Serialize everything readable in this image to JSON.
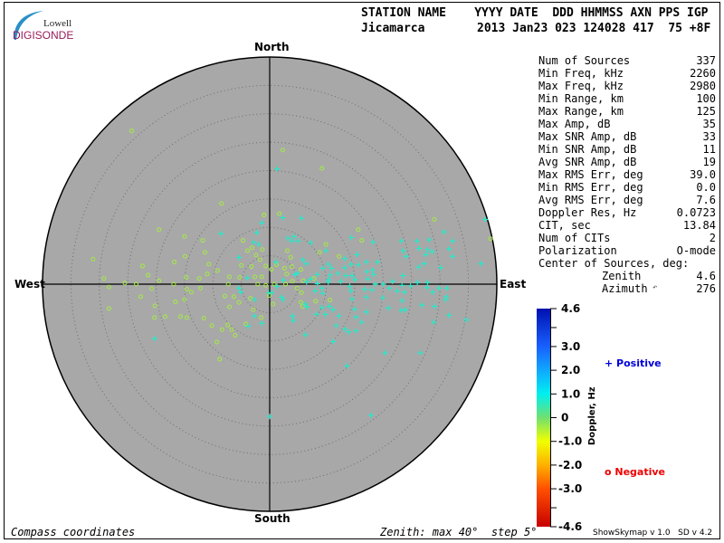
{
  "logo": {
    "line1": "Lowell",
    "line2": "DIGISONDE"
  },
  "header": {
    "labels": "STATION NAME    YYYY DATE  DDD HHMMSS AXN PPS IGP",
    "station": "Jicamarca",
    "values": "2013 Jan23 023 124028 417  75 +8F"
  },
  "stats": [
    {
      "label": "Num of Sources",
      "value": "337"
    },
    {
      "label": "Min Freq, kHz",
      "value": "2260"
    },
    {
      "label": "Max Freq, kHz",
      "value": "2980"
    },
    {
      "label": "Min Range, km",
      "value": "100"
    },
    {
      "label": "Max Range, km",
      "value": "125"
    },
    {
      "label": "Max Amp, dB",
      "value": "35"
    },
    {
      "label": "Max SNR Amp, dB",
      "value": "33"
    },
    {
      "label": "Min SNR Amp, dB",
      "value": "11"
    },
    {
      "label": "Avg SNR Amp, dB",
      "value": "19"
    },
    {
      "label": "Max RMS Err, deg",
      "value": "39.0"
    },
    {
      "label": "Min RMS Err, deg",
      "value": "0.0"
    },
    {
      "label": "Avg RMS Err, deg",
      "value": "7.6"
    },
    {
      "label": "Doppler Res, Hz",
      "value": "0.0723"
    },
    {
      "label": "CIT, sec",
      "value": "13.84"
    },
    {
      "label": "Num of CITs",
      "value": "2"
    },
    {
      "label": "Polarization",
      "value": "O-mode"
    }
  ],
  "center": {
    "title": "Center of Sources, deg:",
    "zenith_label": "Zenith",
    "zenith": "4.6",
    "azimuth_label": "Azimuth",
    "azimuth": "276",
    "azimuth_icon": "azimuth-arrow-icon"
  },
  "footer": {
    "left": "Compass coordinates",
    "right": "Zenith: max 40°  step 5°",
    "version": "ShowSkymap v 1.0   SD v 4.2"
  },
  "chart_data": {
    "type": "scatter",
    "projection": "polar sky map (zenith angle radial, compass azimuth)",
    "compass": {
      "north": "North",
      "south": "South",
      "east": "East",
      "west": "West"
    },
    "zenith_max": 40,
    "zenith_step": 5,
    "grid": true,
    "colors": {
      "sky": "#a8a8a8",
      "grid": "#6e6e6e"
    },
    "legend": {
      "positive": "+ Positive",
      "negative": "o Negative",
      "positive_color": "#0000dd",
      "negative_color": "#ee0000"
    },
    "colorbar": {
      "label": "Doppler, Hz",
      "range": [
        -4.6,
        4.6
      ],
      "ticks": [
        "4.6",
        "3.0",
        "2.0",
        "1.0",
        "0",
        "-1.0",
        "-2.0",
        "-3.0",
        "-4.6"
      ],
      "tick_values": [
        4.6,
        3.0,
        2.0,
        1.0,
        0,
        -1.0,
        -2.0,
        -3.0,
        -4.6
      ],
      "stops": [
        {
          "v": 4.6,
          "c": "#0010b0"
        },
        {
          "v": 3.0,
          "c": "#1860ff"
        },
        {
          "v": 2.0,
          "c": "#10a8ff"
        },
        {
          "v": 1.0,
          "c": "#00f0f0"
        },
        {
          "v": 0,
          "c": "#70e070"
        },
        {
          "v": -1.0,
          "c": "#f0ff00"
        },
        {
          "v": -2.0,
          "c": "#ffb000"
        },
        {
          "v": -3.0,
          "c": "#ff5000"
        },
        {
          "v": -4.6,
          "c": "#c80000"
        }
      ]
    },
    "point_fields": [
      "east_deg",
      "north_deg"
    ],
    "positive_doppler_approx": 0.7,
    "negative_doppler_approx": -0.4,
    "positive": [
      [
        1.3,
        20.3
      ],
      [
        -1.4,
        10.8
      ],
      [
        2.3,
        11.7
      ],
      [
        5.6,
        11.6
      ],
      [
        -8.6,
        8.9
      ],
      [
        -2.3,
        9.1
      ],
      [
        -2.8,
        7.4
      ],
      [
        -2.0,
        7.0
      ],
      [
        -5.4,
        4.7
      ],
      [
        3.2,
        8.1
      ],
      [
        4.3,
        8.4
      ],
      [
        3.9,
        7.6
      ],
      [
        5.0,
        7.6
      ],
      [
        7.2,
        7.3
      ],
      [
        9.9,
        5.9
      ],
      [
        14.4,
        8.2
      ],
      [
        15.4,
        5.2
      ],
      [
        18.2,
        7.4
      ],
      [
        23.2,
        7.6
      ],
      [
        25.9,
        7.6
      ],
      [
        28.1,
        7.8
      ],
      [
        30.7,
        9.2
      ],
      [
        32.2,
        7.6
      ],
      [
        38.0,
        11.4
      ],
      [
        26.3,
        6.3
      ],
      [
        27.8,
        6.1
      ],
      [
        28.6,
        5.7
      ],
      [
        31.6,
        6.2
      ],
      [
        32.2,
        4.9
      ],
      [
        23.5,
        5.9
      ],
      [
        24.0,
        4.9
      ],
      [
        27.5,
        5.2
      ],
      [
        27.2,
        3.6
      ],
      [
        26.2,
        3.0
      ],
      [
        30.1,
        2.9
      ],
      [
        37.2,
        3.6
      ],
      [
        23.5,
        1.5
      ],
      [
        21.6,
        0.5
      ],
      [
        20.0,
        0
      ],
      [
        18.6,
        0
      ],
      [
        21.1,
        -0.7
      ],
      [
        23.3,
        -0.2
      ],
      [
        24.8,
        -0.3
      ],
      [
        26.0,
        0.3
      ],
      [
        27.8,
        0.3
      ],
      [
        27.7,
        -0.6
      ],
      [
        29.8,
        -0.7
      ],
      [
        31.2,
        -0.7
      ],
      [
        22.4,
        -1.2
      ],
      [
        23.7,
        -1.4
      ],
      [
        28.7,
        -1.4
      ],
      [
        31.1,
        -2.2
      ],
      [
        31.0,
        -2.7
      ],
      [
        19.9,
        -2.4
      ],
      [
        23.3,
        -2.9
      ],
      [
        26.8,
        -3.7
      ],
      [
        29.0,
        -3.9
      ],
      [
        23.2,
        -4.6
      ],
      [
        23.9,
        -4.5
      ],
      [
        20.9,
        -4.2
      ],
      [
        31.6,
        -5.5
      ],
      [
        34.6,
        -6.3
      ],
      [
        28.9,
        -6.7
      ],
      [
        17.0,
        3.9
      ],
      [
        19.0,
        3.9
      ],
      [
        17.1,
        2.2
      ],
      [
        18.1,
        2.5
      ],
      [
        18.3,
        1.7
      ],
      [
        17.3,
        0.9
      ],
      [
        13.2,
        4.5
      ],
      [
        14.3,
        3.5
      ],
      [
        15.6,
        3.4
      ],
      [
        13.2,
        2.9
      ],
      [
        13.4,
        1.5
      ],
      [
        14.5,
        1.5
      ],
      [
        15.0,
        0.8
      ],
      [
        12.5,
        0.5
      ],
      [
        14.1,
        -0.4
      ],
      [
        14.3,
        -1.2
      ],
      [
        16.7,
        -0.9
      ],
      [
        18.0,
        -1.0
      ],
      [
        17.0,
        -2.3
      ],
      [
        14.5,
        -2.6
      ],
      [
        14.9,
        -4.4
      ],
      [
        17.0,
        -4.9
      ],
      [
        15.2,
        -5.8
      ],
      [
        16.2,
        -6.7
      ],
      [
        12.2,
        -5.6
      ],
      [
        11.7,
        -7.3
      ],
      [
        13.2,
        -7.9
      ],
      [
        15.2,
        -8.2
      ],
      [
        13.9,
        -8.4
      ],
      [
        11.2,
        -4.5
      ],
      [
        10.5,
        -3.9
      ],
      [
        9.8,
        -5.3
      ],
      [
        8.2,
        -5.3
      ],
      [
        9.2,
        -4.1
      ],
      [
        6.2,
        -3.5
      ],
      [
        6.6,
        -4.0
      ],
      [
        9.3,
        -1.6
      ],
      [
        8.0,
        -1.2
      ],
      [
        9.2,
        -0.7
      ],
      [
        10.3,
        0.4
      ],
      [
        10.4,
        0.8
      ],
      [
        8.4,
        0.1
      ],
      [
        8.4,
        1.7
      ],
      [
        9.3,
        2.8
      ],
      [
        10.3,
        3.5
      ],
      [
        10.9,
        2.8
      ],
      [
        10.6,
        1.6
      ],
      [
        12.0,
        1.9
      ],
      [
        6.4,
        3.6
      ],
      [
        5.8,
        4.3
      ],
      [
        4.9,
        1.9
      ],
      [
        4.4,
        1.7
      ],
      [
        6.5,
        0.4
      ],
      [
        7.2,
        0.9
      ],
      [
        1.1,
        3.9
      ],
      [
        2.4,
        0.7
      ],
      [
        1.3,
        -0.4
      ],
      [
        -0.2,
        -1.5
      ],
      [
        0.4,
        -1.5
      ],
      [
        2.1,
        -2.3
      ],
      [
        2.3,
        -2.7
      ],
      [
        4.0,
        -5.6
      ],
      [
        4.2,
        -6.4
      ],
      [
        6.3,
        -8.9
      ],
      [
        -3.9,
        1.1
      ],
      [
        -5.4,
        -0.7
      ],
      [
        -5.1,
        -1.4
      ],
      [
        -2.7,
        -2.7
      ],
      [
        -2.7,
        -5.6
      ],
      [
        -1.4,
        -6.9
      ],
      [
        -3.8,
        -7.4
      ],
      [
        -20.3,
        -9.6
      ],
      [
        11.2,
        -10.1
      ],
      [
        20.3,
        -12.1
      ],
      [
        26.5,
        -12.1
      ],
      [
        13.6,
        -14.4
      ],
      [
        0,
        -23.3
      ],
      [
        17.8,
        -23.1
      ]
    ],
    "negative": [
      [
        -24.3,
        27.0
      ],
      [
        2.3,
        23.6
      ],
      [
        9.2,
        20.4
      ],
      [
        -8.5,
        14.2
      ],
      [
        -19.5,
        9.6
      ],
      [
        -15.0,
        8.4
      ],
      [
        -31.1,
        4.4
      ],
      [
        -29.2,
        1.0
      ],
      [
        -28.3,
        -4.3
      ],
      [
        -22.4,
        3.2
      ],
      [
        -20.2,
        -3.8
      ],
      [
        -22.7,
        -2.2
      ],
      [
        -20.3,
        -5.9
      ],
      [
        -15.7,
        -5.7
      ],
      [
        -10.2,
        -7.3
      ],
      [
        -9.3,
        -10.2
      ],
      [
        -8.8,
        -13.2
      ],
      [
        -6.1,
        -9.0
      ],
      [
        -1.0,
        12.2
      ],
      [
        1.7,
        12.4
      ],
      [
        15.6,
        9.6
      ],
      [
        16.2,
        7.7
      ],
      [
        29.0,
        11.4
      ],
      [
        38.9,
        8.0
      ],
      [
        9.9,
        7.0
      ],
      [
        12.2,
        4.9
      ],
      [
        -3.9,
        5.9
      ],
      [
        -2.4,
        5.1
      ],
      [
        -11.8,
        7.7
      ],
      [
        -11.4,
        5.6
      ],
      [
        -14.9,
        4.9
      ],
      [
        -16.8,
        3.9
      ],
      [
        -21.4,
        1.6
      ],
      [
        -19.5,
        0.6
      ],
      [
        -25.5,
        0.2
      ],
      [
        -23.5,
        0
      ],
      [
        -28.3,
        -0.5
      ],
      [
        -20.8,
        -0.8
      ],
      [
        -16.9,
        0
      ],
      [
        -14.7,
        1.2
      ],
      [
        -12.4,
        1.0
      ],
      [
        -11.0,
        1.8
      ],
      [
        -9.2,
        2.4
      ],
      [
        -10.7,
        3.5
      ],
      [
        -7.1,
        1.3
      ],
      [
        -5.3,
        1.2
      ],
      [
        -7.3,
        0
      ],
      [
        -14.6,
        -0.9
      ],
      [
        -13.8,
        -1.4
      ],
      [
        -12.2,
        -0.7
      ],
      [
        -15.0,
        -2.7
      ],
      [
        -16.6,
        -3.1
      ],
      [
        -18.4,
        -5.7
      ],
      [
        -14.6,
        -5.9
      ],
      [
        -11.6,
        -6.0
      ],
      [
        -7.9,
        -2.1
      ],
      [
        -6.3,
        -2.2
      ],
      [
        -7.1,
        -4.0
      ],
      [
        -8.4,
        -8.0
      ],
      [
        -6.7,
        -8.0
      ],
      [
        -7.4,
        -7.2
      ],
      [
        -4.2,
        -7.0
      ],
      [
        -2.9,
        -4.5
      ],
      [
        -1.5,
        -5.9
      ],
      [
        -5.4,
        -3.2
      ],
      [
        -3.4,
        -2.5
      ],
      [
        -5.0,
        3.3
      ],
      [
        -3.2,
        3.1
      ],
      [
        -1.7,
        4.3
      ],
      [
        -1.3,
        6.1
      ],
      [
        -3.1,
        6.4
      ],
      [
        -4.7,
        7.7
      ],
      [
        -0.7,
        3.2
      ],
      [
        0.3,
        2.6
      ],
      [
        1.2,
        3.4
      ],
      [
        3.7,
        4.7
      ],
      [
        3.1,
        5.9
      ],
      [
        2.6,
        2.8
      ],
      [
        3.9,
        3.1
      ],
      [
        5.5,
        2.6
      ],
      [
        3.0,
        1.8
      ],
      [
        4.0,
        0.5
      ],
      [
        5.9,
        0.6
      ],
      [
        7.8,
        1.0
      ],
      [
        8.8,
        5.6
      ],
      [
        2.8,
        0
      ],
      [
        4.8,
        -0.7
      ],
      [
        5.6,
        -1.5
      ],
      [
        5.5,
        -3.2
      ],
      [
        5.8,
        -3.9
      ],
      [
        8.1,
        -3.0
      ],
      [
        10.6,
        -2.8
      ],
      [
        0.6,
        -3.5
      ],
      [
        -0.1,
        -2.0
      ],
      [
        0.8,
        0
      ],
      [
        -0.7,
        -0.2
      ],
      [
        -2.1,
        0
      ],
      [
        -1.4,
        1.3
      ],
      [
        -2.6,
        1.3
      ]
    ]
  }
}
